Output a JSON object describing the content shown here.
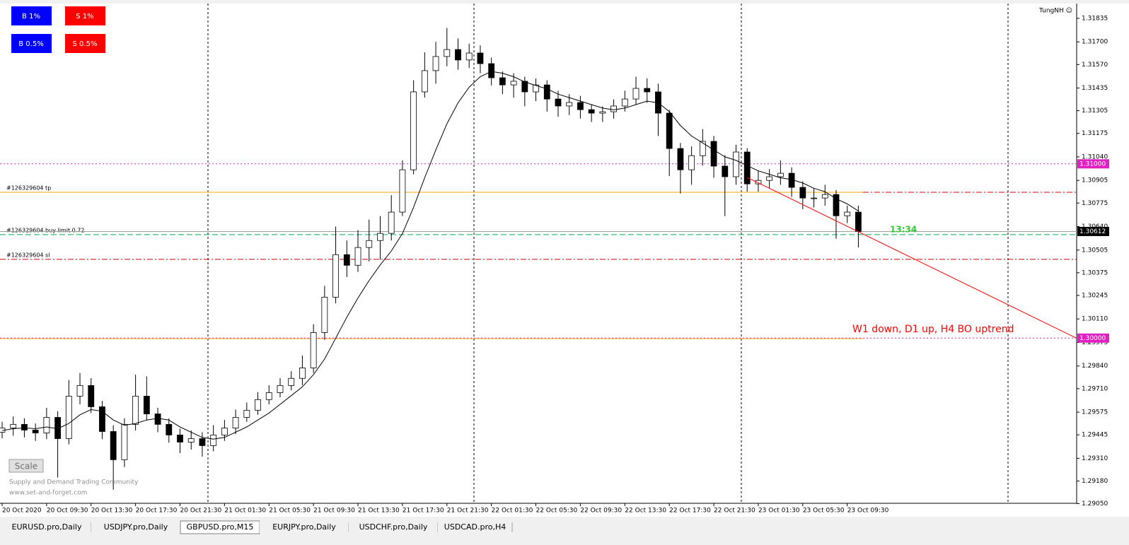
{
  "toolbar": {
    "buttons": [
      "B 1%",
      "S 1%",
      "B 0.5%",
      "S 0.5%"
    ],
    "scale": "Scale",
    "user": "TungNH ☺",
    "watermark": [
      "Supply and Demand Trading Community",
      "www.set-and-forget.com"
    ]
  },
  "chart_data": {
    "type": "candlestick",
    "up_color": "#ffffff",
    "down_color": "#000000",
    "wick_color": "#000000",
    "ma_color": "#000000",
    "xlim": [
      -0.19,
      96.63
    ],
    "ylim": [
      1.29052,
      1.3192
    ],
    "xticks": [
      {
        "value": 0,
        "label": "20 Oct 2020"
      },
      {
        "value": 4,
        "label": "20 Oct 09:30"
      },
      {
        "value": 8,
        "label": "20 Oct 13:30"
      },
      {
        "value": 12,
        "label": "20 Oct 17:30"
      },
      {
        "value": 16,
        "label": "20 Oct 21:30"
      },
      {
        "value": 20,
        "label": "21 Oct 01:30"
      },
      {
        "value": 24,
        "label": "21 Oct 05:30"
      },
      {
        "value": 28,
        "label": "21 Oct 09:30"
      },
      {
        "value": 32,
        "label": "21 Oct 13:30"
      },
      {
        "value": 36,
        "label": "21 Oct 17:30"
      },
      {
        "value": 40,
        "label": "21 Oct 21:30"
      },
      {
        "value": 44,
        "label": "22 Oct 01:30"
      },
      {
        "value": 48,
        "label": "22 Oct 05:30"
      },
      {
        "value": 52,
        "label": "22 Oct 09:30"
      },
      {
        "value": 56,
        "label": "22 Oct 13:30"
      },
      {
        "value": 60,
        "label": "22 Oct 17:30"
      },
      {
        "value": 64,
        "label": "22 Oct 21:30"
      },
      {
        "value": 68,
        "label": "23 Oct 01:30"
      },
      {
        "value": 72,
        "label": "23 Oct 05:30"
      },
      {
        "value": 76,
        "label": "23 Oct 09:30"
      }
    ],
    "yticks": [
      {
        "value": 1.31835,
        "label": "1.31835"
      },
      {
        "value": 1.317,
        "label": "1.31700"
      },
      {
        "value": 1.3157,
        "label": "1.31570"
      },
      {
        "value": 1.31435,
        "label": "1.31435"
      },
      {
        "value": 1.31305,
        "label": "1.31305"
      },
      {
        "value": 1.31175,
        "label": "1.31175"
      },
      {
        "value": 1.3104,
        "label": "1.31040"
      },
      {
        "value": 1.30905,
        "label": "1.30905"
      },
      {
        "value": 1.30775,
        "label": "1.30775"
      },
      {
        "value": 1.3064,
        "label": "1.30640"
      },
      {
        "value": 1.30505,
        "label": "1.30505"
      },
      {
        "value": 1.30375,
        "label": "1.30375"
      },
      {
        "value": 1.30245,
        "label": "1.30245"
      },
      {
        "value": 1.3011,
        "label": "1.30110"
      },
      {
        "value": 1.29975,
        "label": "1.29975"
      },
      {
        "value": 1.2984,
        "label": "1.29840"
      },
      {
        "value": 1.2971,
        "label": "1.29710"
      },
      {
        "value": 1.29575,
        "label": "1.29575"
      },
      {
        "value": 1.29445,
        "label": "1.29445"
      },
      {
        "value": 1.2931,
        "label": "1.29310"
      },
      {
        "value": 1.2918,
        "label": "1.29180"
      },
      {
        "value": 1.2905,
        "label": "1.29050"
      }
    ],
    "candles": [
      [
        1.2946,
        1.2952,
        1.29425,
        1.29484
      ],
      [
        1.29484,
        1.2955,
        1.2944,
        1.29505
      ],
      [
        1.29505,
        1.2954,
        1.2943,
        1.29472
      ],
      [
        1.29472,
        1.2951,
        1.2941,
        1.29456
      ],
      [
        1.29456,
        1.296,
        1.2942,
        1.29545
      ],
      [
        1.29545,
        1.2958,
        1.292,
        1.29423
      ],
      [
        1.29423,
        1.2976,
        1.2939,
        1.29667
      ],
      [
        1.29667,
        1.298,
        1.2962,
        1.29728
      ],
      [
        1.29728,
        1.2977,
        1.2957,
        1.29606
      ],
      [
        1.29606,
        1.2964,
        1.2942,
        1.29464
      ],
      [
        1.29464,
        1.295,
        1.2913,
        1.29302
      ],
      [
        1.29302,
        1.2954,
        1.2926,
        1.29505
      ],
      [
        1.29505,
        1.2979,
        1.2947,
        1.29667
      ],
      [
        1.29667,
        1.2978,
        1.2953,
        1.29565
      ],
      [
        1.29565,
        1.296,
        1.2946,
        1.29505
      ],
      [
        1.29505,
        1.2954,
        1.294,
        1.29444
      ],
      [
        1.29444,
        1.2948,
        1.2934,
        1.29403
      ],
      [
        1.29403,
        1.2947,
        1.2936,
        1.29423
      ],
      [
        1.29423,
        1.2946,
        1.2932,
        1.29383
      ],
      [
        1.29383,
        1.295,
        1.2935,
        1.29444
      ],
      [
        1.29444,
        1.2953,
        1.2941,
        1.29484
      ],
      [
        1.29484,
        1.2959,
        1.2945,
        1.29545
      ],
      [
        1.29545,
        1.2963,
        1.2952,
        1.29586
      ],
      [
        1.29586,
        1.2969,
        1.2956,
        1.29647
      ],
      [
        1.29647,
        1.2973,
        1.2962,
        1.29687
      ],
      [
        1.29687,
        1.2977,
        1.2966,
        1.29728
      ],
      [
        1.29728,
        1.2981,
        1.297,
        1.29769
      ],
      [
        1.29769,
        1.299,
        1.2973,
        1.29829
      ],
      [
        1.29829,
        1.3008,
        1.298,
        1.30032
      ],
      [
        1.30032,
        1.303,
        1.2999,
        1.30235
      ],
      [
        1.30235,
        1.3064,
        1.302,
        1.30479
      ],
      [
        1.30479,
        1.3056,
        1.3035,
        1.30418
      ],
      [
        1.30418,
        1.3062,
        1.3038,
        1.3052
      ],
      [
        1.3052,
        1.3068,
        1.3044,
        1.3056
      ],
      [
        1.3056,
        1.307,
        1.3045,
        1.30601
      ],
      [
        1.30601,
        1.3082,
        1.3056,
        1.30723
      ],
      [
        1.30723,
        1.3102,
        1.307,
        1.30966
      ],
      [
        1.30966,
        1.3148,
        1.3094,
        1.31413
      ],
      [
        1.31413,
        1.3164,
        1.3138,
        1.31535
      ],
      [
        1.31535,
        1.317,
        1.3146,
        1.31616
      ],
      [
        1.31616,
        1.3178,
        1.3156,
        1.31656
      ],
      [
        1.31656,
        1.3172,
        1.3154,
        1.31596
      ],
      [
        1.31596,
        1.3169,
        1.3155,
        1.31636
      ],
      [
        1.31636,
        1.3168,
        1.3152,
        1.31575
      ],
      [
        1.31575,
        1.3161,
        1.3145,
        1.31494
      ],
      [
        1.31494,
        1.3153,
        1.314,
        1.31453
      ],
      [
        1.31453,
        1.3152,
        1.3138,
        1.31474
      ],
      [
        1.31474,
        1.315,
        1.3133,
        1.31413
      ],
      [
        1.31413,
        1.3149,
        1.3136,
        1.31453
      ],
      [
        1.31453,
        1.3148,
        1.313,
        1.31372
      ],
      [
        1.31372,
        1.3142,
        1.3127,
        1.31332
      ],
      [
        1.31332,
        1.314,
        1.3128,
        1.31352
      ],
      [
        1.31352,
        1.3139,
        1.3126,
        1.31311
      ],
      [
        1.31311,
        1.3134,
        1.3124,
        1.31291
      ],
      [
        1.31291,
        1.3133,
        1.3124,
        1.31299
      ],
      [
        1.31299,
        1.3137,
        1.3126,
        1.31332
      ],
      [
        1.31332,
        1.3142,
        1.313,
        1.31372
      ],
      [
        1.31372,
        1.315,
        1.3134,
        1.31433
      ],
      [
        1.31433,
        1.3149,
        1.3135,
        1.31413
      ],
      [
        1.31413,
        1.3146,
        1.3116,
        1.31291
      ],
      [
        1.31291,
        1.3131,
        1.3093,
        1.31088
      ],
      [
        1.31088,
        1.3112,
        1.3083,
        1.30966
      ],
      [
        1.30966,
        1.311,
        1.3088,
        1.31047
      ],
      [
        1.31047,
        1.312,
        1.3099,
        1.31129
      ],
      [
        1.31129,
        1.3116,
        1.3092,
        1.30987
      ],
      [
        1.30987,
        1.3105,
        1.307,
        1.30926
      ],
      [
        1.30926,
        1.3111,
        1.3088,
        1.31068
      ],
      [
        1.31068,
        1.3109,
        1.3084,
        1.30885
      ],
      [
        1.30885,
        1.3096,
        1.3084,
        1.30905
      ],
      [
        1.30905,
        1.3097,
        1.3086,
        1.30926
      ],
      [
        1.30926,
        1.3102,
        1.3088,
        1.30946
      ],
      [
        1.30946,
        1.3098,
        1.3081,
        1.30865
      ],
      [
        1.30865,
        1.309,
        1.3074,
        1.30804
      ],
      [
        1.30804,
        1.3086,
        1.3075,
        1.30804
      ],
      [
        1.30804,
        1.3088,
        1.3076,
        1.30824
      ],
      [
        1.30824,
        1.3085,
        1.3057,
        1.30702
      ],
      [
        1.30702,
        1.3076,
        1.3066,
        1.30723
      ],
      [
        1.30723,
        1.3076,
        1.3052,
        1.30612
      ]
    ],
    "ma": [
      1.2947,
      1.2948,
      1.29485,
      1.2948,
      1.2949,
      1.2948,
      1.2951,
      1.2956,
      1.2959,
      1.2958,
      1.2953,
      1.295,
      1.2951,
      1.2953,
      1.2954,
      1.2953,
      1.2949,
      1.2946,
      1.2943,
      1.2942,
      1.2943,
      1.2946,
      1.2949,
      1.2953,
      1.2957,
      1.2962,
      1.2967,
      1.2972,
      1.2979,
      1.2988,
      1.3,
      1.3012,
      1.3023,
      1.3033,
      1.3042,
      1.305,
      1.306,
      1.3075,
      1.3092,
      1.3108,
      1.3123,
      1.3135,
      1.3144,
      1.315,
      1.3153,
      1.3152,
      1.315,
      1.3147,
      1.3145,
      1.3143,
      1.314,
      1.3138,
      1.3136,
      1.3134,
      1.3132,
      1.3131,
      1.3132,
      1.3134,
      1.3136,
      1.3135,
      1.313,
      1.3122,
      1.3116,
      1.3112,
      1.3108,
      1.3104,
      1.3102,
      1.3099,
      1.3096,
      1.3094,
      1.3092,
      1.3091,
      1.3089,
      1.3086,
      1.3084,
      1.308,
      1.3077,
      1.3073
    ],
    "price_marks": [
      {
        "value": 1.31,
        "label": "1.31000",
        "color": "#e020c0"
      },
      {
        "value": 1.30612,
        "label": "1.30612",
        "color": "#000000"
      },
      {
        "value": 1.3,
        "label": "1.30000",
        "color": "#e020c0"
      }
    ],
    "orders": [
      {
        "name": "#126329604 tp",
        "value": 1.30837,
        "color": "#ffa500"
      },
      {
        "name": "#126329604 buy limit 0.72",
        "value": 1.30594,
        "color": "#00b050"
      },
      {
        "name": "#126329604 sl",
        "value": 1.30452,
        "color": "#d00000"
      }
    ],
    "support_line": {
      "value": 1.29997,
      "color": "#ffa500"
    },
    "trendline": {
      "x": [
        67,
        96.6
      ],
      "values": [
        1.30922,
        1.3
      ],
      "color": "#ff0000"
    },
    "annotations": [
      "W1 down, D1 up, H4 BO uptrend",
      "13:34"
    ]
  },
  "tabs": [
    "EURUSD.pro,Daily",
    "USDJPY.pro,Daily",
    "GBPUSD.pro,M15",
    "EURJPY.pro,Daily",
    "USDCHF.pro,Daily",
    "USDCAD.pro,H4"
  ]
}
